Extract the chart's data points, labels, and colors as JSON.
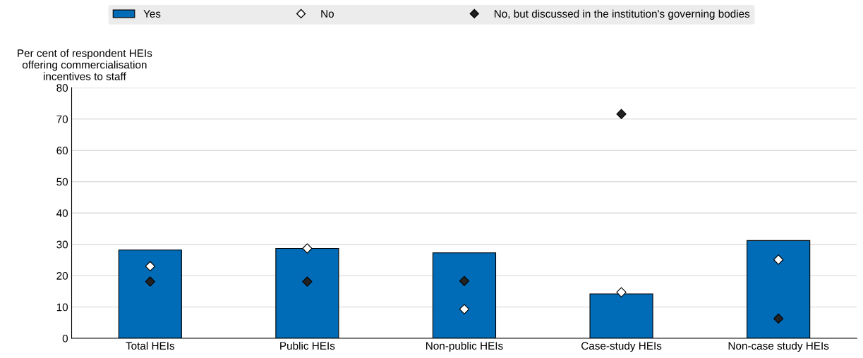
{
  "chart_data": {
    "type": "bar",
    "ylabel": "Per cent of respondent HEIs\noffering commercialisation\nincentives to staff",
    "categories": [
      "Total HEIs",
      "Public HEIs",
      "Non-public HEIs",
      "Case-study HEIs",
      "Non-case study HEIs"
    ],
    "series": [
      {
        "name": "Yes",
        "color": "#006bb6",
        "values": [
          28.2,
          28.7,
          27.3,
          14.2,
          31.2
        ]
      },
      {
        "name": "No",
        "type": "scatter",
        "color": "#ffffff",
        "values": [
          23.0,
          28.7,
          9.3,
          14.7,
          25.1
        ]
      },
      {
        "name": "No, but discussed in the institution's governing bodies",
        "type": "scatter",
        "color": "#222222",
        "values": [
          18.1,
          18.1,
          18.3,
          71.6,
          6.3
        ]
      }
    ],
    "ylim": [
      0,
      80
    ],
    "yticks": [
      0,
      10,
      20,
      30,
      40,
      50,
      60,
      70,
      80
    ],
    "grid": "y",
    "legend": "top",
    "marker": "diamond"
  }
}
